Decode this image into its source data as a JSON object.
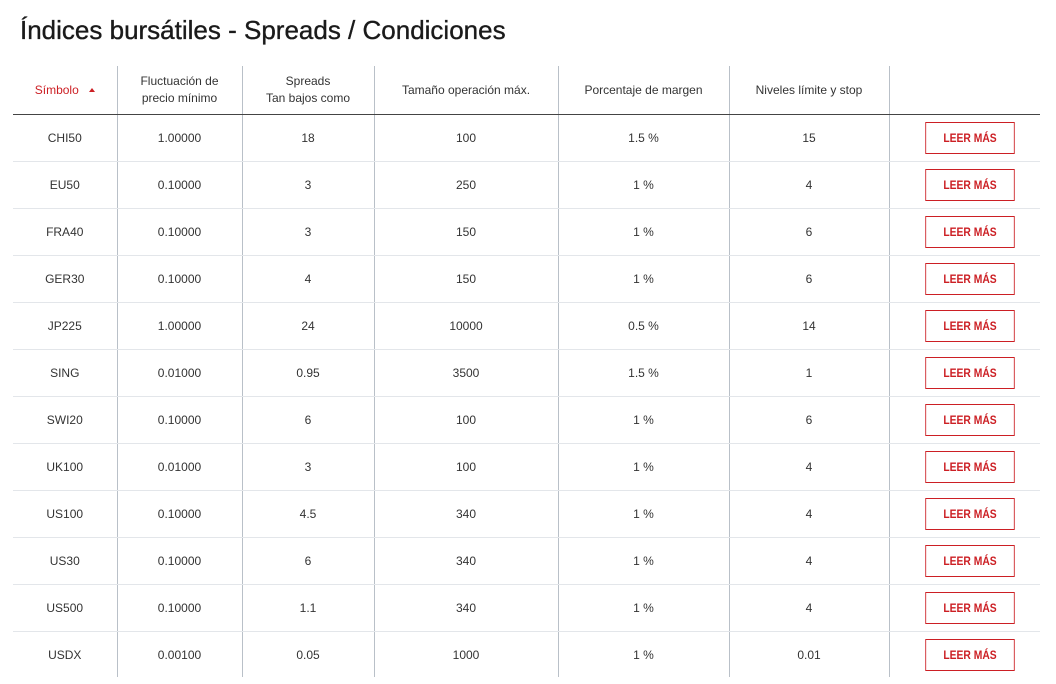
{
  "page": {
    "title": "Índices bursátiles - Spreads / Condiciones"
  },
  "colors": {
    "accent": "#cc1f24",
    "text": "#333333",
    "column_divider": "#b9c0c8",
    "row_divider": "#e3e6ea",
    "header_rule": "#444444"
  },
  "table": {
    "sorted_column": "Símbolo",
    "sort_direction": "ascending",
    "headers": {
      "symbol": "Símbolo",
      "min_fluctuation_line1": "Fluctuación de",
      "min_fluctuation_line2": "precio mínimo",
      "spreads_line1": "Spreads",
      "spreads_line2": "Tan bajos como",
      "max_trade_size": "Tamaño operación máx.",
      "margin_percent": "Porcentaje de margen",
      "limit_stop_levels": "Niveles límite y stop",
      "action": ""
    },
    "read_more_label": "LEER MÁS",
    "rows": [
      {
        "symbol": "CHI50",
        "min_fluctuation": "1.00000",
        "spread": "18",
        "max_size": "100",
        "margin": "1.5 %",
        "levels": "15",
        "action": "LEER MÁS"
      },
      {
        "symbol": "EU50",
        "min_fluctuation": "0.10000",
        "spread": "3",
        "max_size": "250",
        "margin": "1 %",
        "levels": "4",
        "action": "LEER MÁS"
      },
      {
        "symbol": "FRA40",
        "min_fluctuation": "0.10000",
        "spread": "3",
        "max_size": "150",
        "margin": "1 %",
        "levels": "6",
        "action": "LEER MÁS"
      },
      {
        "symbol": "GER30",
        "min_fluctuation": "0.10000",
        "spread": "4",
        "max_size": "150",
        "margin": "1 %",
        "levels": "6",
        "action": "LEER MÁS"
      },
      {
        "symbol": "JP225",
        "min_fluctuation": "1.00000",
        "spread": "24",
        "max_size": "10000",
        "margin": "0.5 %",
        "levels": "14",
        "action": "LEER MÁS"
      },
      {
        "symbol": "SING",
        "min_fluctuation": "0.01000",
        "spread": "0.95",
        "max_size": "3500",
        "margin": "1.5 %",
        "levels": "1",
        "action": "LEER MÁS"
      },
      {
        "symbol": "SWI20",
        "min_fluctuation": "0.10000",
        "spread": "6",
        "max_size": "100",
        "margin": "1 %",
        "levels": "6",
        "action": "LEER MÁS"
      },
      {
        "symbol": "UK100",
        "min_fluctuation": "0.01000",
        "spread": "3",
        "max_size": "100",
        "margin": "1 %",
        "levels": "4",
        "action": "LEER MÁS"
      },
      {
        "symbol": "US100",
        "min_fluctuation": "0.10000",
        "spread": "4.5",
        "max_size": "340",
        "margin": "1 %",
        "levels": "4",
        "action": "LEER MÁS"
      },
      {
        "symbol": "US30",
        "min_fluctuation": "0.10000",
        "spread": "6",
        "max_size": "340",
        "margin": "1 %",
        "levels": "4",
        "action": "LEER MÁS"
      },
      {
        "symbol": "US500",
        "min_fluctuation": "0.10000",
        "spread": "1.1",
        "max_size": "340",
        "margin": "1 %",
        "levels": "4",
        "action": "LEER MÁS"
      },
      {
        "symbol": "USDX",
        "min_fluctuation": "0.00100",
        "spread": "0.05",
        "max_size": "1000",
        "margin": "1 %",
        "levels": "0.01",
        "action": "LEER MÁS"
      }
    ]
  }
}
